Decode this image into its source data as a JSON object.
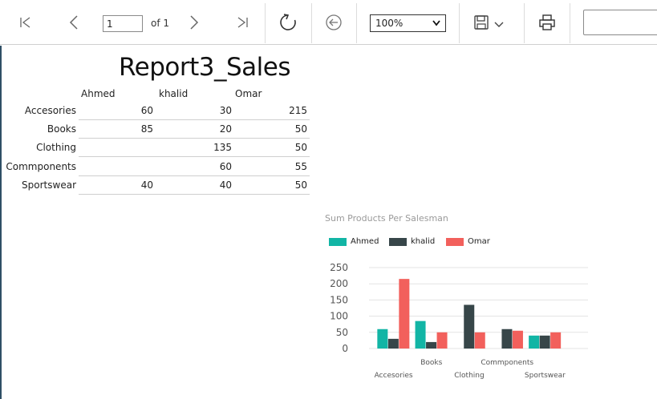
{
  "toolbar": {
    "current_page": "1",
    "of_label": "of 1",
    "zoom_value": "100%",
    "search_placeholder": "",
    "icons": {
      "first": "first-page-icon",
      "prev": "previous-page-icon",
      "next": "next-page-icon",
      "last": "last-page-icon",
      "refresh": "refresh-icon",
      "back": "back-to-parent-icon",
      "save": "save-icon",
      "print": "print-icon"
    }
  },
  "report": {
    "title": "Report3_Sales",
    "matrix": {
      "columns": [
        "Ahmed",
        "khalid",
        "Omar"
      ],
      "rows": [
        {
          "label": "Accesories",
          "values": [
            "60",
            "30",
            "215"
          ]
        },
        {
          "label": "Books",
          "values": [
            "85",
            "20",
            "50"
          ]
        },
        {
          "label": "Clothing",
          "values": [
            "",
            "135",
            "50"
          ]
        },
        {
          "label": "Commponents",
          "values": [
            "",
            "60",
            "55"
          ]
        },
        {
          "label": "Sportswear",
          "values": [
            "40",
            "40",
            "50"
          ]
        }
      ]
    }
  },
  "chart_data": {
    "type": "bar",
    "title": "Sum Products Per Salesman",
    "xlabel": "",
    "ylabel": "",
    "categories": [
      "Accesories",
      "Books",
      "Clothing",
      "Commponents",
      "Sportswear"
    ],
    "series": [
      {
        "name": "Ahmed",
        "color": "#12b5a5",
        "values": [
          60,
          85,
          0,
          0,
          40
        ]
      },
      {
        "name": "khalid",
        "color": "#374649",
        "values": [
          30,
          20,
          135,
          60,
          40
        ]
      },
      {
        "name": "Omar",
        "color": "#f2605c",
        "values": [
          215,
          50,
          50,
          55,
          50
        ]
      }
    ],
    "ylim": [
      0,
      250
    ],
    "yticks": [
      "0",
      "50",
      "100",
      "150",
      "200",
      "250"
    ],
    "grid": true,
    "legend_position": "top-left"
  }
}
